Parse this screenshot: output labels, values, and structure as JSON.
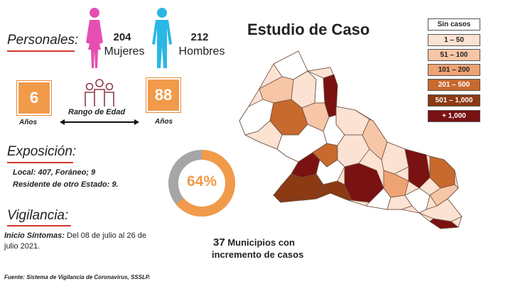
{
  "personal": {
    "heading": "Personales:",
    "women_count": "204",
    "women_label": "Mujeres",
    "men_count": "212",
    "men_label": "Hombres"
  },
  "age": {
    "min": "6",
    "min_unit": "Años",
    "max": "88",
    "max_unit": "Años",
    "range_label": "Rango de Edad"
  },
  "exposure": {
    "heading": "Exposición:",
    "line1": "Local: 407, Foráneo; 9",
    "line2": "Residente de otro Estado: 9."
  },
  "percent": {
    "label": "64%",
    "value": 0.64
  },
  "surveillance": {
    "heading": "Vigilancia:",
    "line_label": "Inicio Síntomas:",
    "line_text": "Del 08 de julio al 26 de julio 2021."
  },
  "map": {
    "title": "Estudio de Caso",
    "municipios_count": "37",
    "municipios_text1": "Municipios con",
    "municipios_text2": "incremento de casos"
  },
  "legend": [
    {
      "label": "Sin casos",
      "color": "#ffffff"
    },
    {
      "label": "1 – 50",
      "color": "#fbe2d2"
    },
    {
      "label": "51 – 100",
      "color": "#f6c6a6"
    },
    {
      "label": "101 – 200",
      "color": "#eea374"
    },
    {
      "label": "201 – 500",
      "color": "#c8692e"
    },
    {
      "label": "501 – 1,000",
      "color": "#8b3a14"
    },
    {
      "label": "+ 1,000",
      "color": "#7a1212"
    }
  ],
  "source": "Fuente: Sistema de Vigilancia de Coronavirus, SSSLP.",
  "colors": {
    "accent_orange": "#f19a4a",
    "underline_red": "#d23a2a",
    "women_pink": "#e64fb2",
    "men_cyan": "#2bb7e6"
  }
}
